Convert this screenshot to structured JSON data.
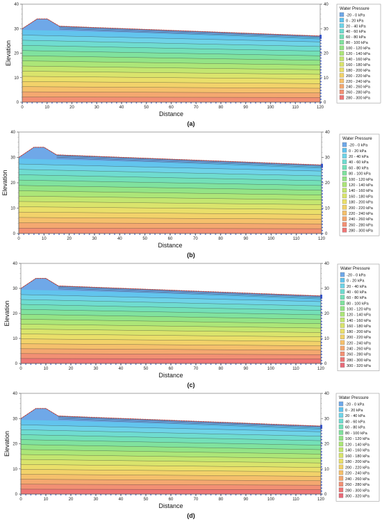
{
  "chart_data": [
    {
      "type": "heatmap",
      "caption": "(a)",
      "xlabel": "Distance",
      "ylabel": "Elevation",
      "xlim": [
        0,
        120
      ],
      "ylim": [
        0,
        40
      ],
      "x_ticks": [
        0,
        10,
        20,
        30,
        40,
        50,
        60,
        70,
        80,
        90,
        100,
        110,
        120
      ],
      "y_ticks": [
        0,
        10,
        20,
        30,
        40
      ],
      "legend_title": "Water Pressure",
      "legend_placement": "right",
      "ground_surface": [
        [
          0,
          30
        ],
        [
          6,
          34
        ],
        [
          10,
          34
        ],
        [
          15,
          31
        ],
        [
          120,
          27
        ]
      ],
      "legend": [
        {
          "label": "-20 - 0 kPa",
          "color": "#6fa8e8"
        },
        {
          "label": "0 - 20 kPa",
          "color": "#62c4ee"
        },
        {
          "label": "20 - 40 kPa",
          "color": "#6fd4e8"
        },
        {
          "label": "40 - 60 kPa",
          "color": "#6fdcd0"
        },
        {
          "label": "60 - 80 kPa",
          "color": "#74e0b8"
        },
        {
          "label": "80 - 100 kPa",
          "color": "#80e29e"
        },
        {
          "label": "100 - 120 kPa",
          "color": "#94e486"
        },
        {
          "label": "120 - 140 kPa",
          "color": "#ace678"
        },
        {
          "label": "140 - 160 kPa",
          "color": "#c4e670"
        },
        {
          "label": "160 - 180 kPa",
          "color": "#dae46c"
        },
        {
          "label": "180 - 200 kPa",
          "color": "#eadf6a"
        },
        {
          "label": "200 - 220 kPa",
          "color": "#f2d26a"
        },
        {
          "label": "220 - 240 kPa",
          "color": "#f5c06c"
        },
        {
          "label": "240 - 260 kPa",
          "color": "#f4a870"
        },
        {
          "label": "260 - 280 kPa",
          "color": "#f29074"
        },
        {
          "label": "280 - 300 kPa",
          "color": "#ee7676"
        }
      ]
    },
    {
      "type": "heatmap",
      "caption": "(b)",
      "xlabel": "Distance",
      "ylabel": "Elevation",
      "xlim": [
        0,
        120
      ],
      "ylim": [
        0,
        40
      ],
      "x_ticks": [
        0,
        10,
        20,
        30,
        40,
        50,
        60,
        70,
        80,
        90,
        100,
        110,
        120
      ],
      "y_ticks": [
        0,
        10,
        20,
        30,
        40
      ],
      "legend_title": "Water Pressure",
      "legend_placement": "right",
      "ground_surface": [
        [
          0,
          30
        ],
        [
          6,
          34
        ],
        [
          10,
          34
        ],
        [
          15,
          31
        ],
        [
          120,
          27
        ]
      ],
      "legend": [
        {
          "label": "-20 - 0 kPa",
          "color": "#6fa8e8"
        },
        {
          "label": "0 - 20 kPa",
          "color": "#62c4ee"
        },
        {
          "label": "20 - 40 kPa",
          "color": "#6fd4e8"
        },
        {
          "label": "40 - 60 kPa",
          "color": "#6fdcd0"
        },
        {
          "label": "60 - 80 kPa",
          "color": "#74e0b8"
        },
        {
          "label": "80 - 100 kPa",
          "color": "#80e29e"
        },
        {
          "label": "100 - 120 kPa",
          "color": "#94e486"
        },
        {
          "label": "120 - 140 kPa",
          "color": "#ace678"
        },
        {
          "label": "140 - 160 kPa",
          "color": "#c4e670"
        },
        {
          "label": "160 - 180 kPa",
          "color": "#dae46c"
        },
        {
          "label": "180 - 200 kPa",
          "color": "#eadf6a"
        },
        {
          "label": "200 - 220 kPa",
          "color": "#f2d26a"
        },
        {
          "label": "220 - 240 kPa",
          "color": "#f5c06c"
        },
        {
          "label": "240 - 260 kPa",
          "color": "#f4a870"
        },
        {
          "label": "260 - 280 kPa",
          "color": "#f29074"
        },
        {
          "label": "280 - 300 kPa",
          "color": "#ee7676"
        }
      ]
    },
    {
      "type": "heatmap",
      "caption": "(c)",
      "xlabel": "Distance",
      "ylabel": "Elevation",
      "xlim": [
        0,
        120
      ],
      "ylim": [
        0,
        40
      ],
      "x_ticks": [
        0,
        10,
        20,
        30,
        40,
        50,
        60,
        70,
        80,
        90,
        100,
        110,
        120
      ],
      "y_ticks": [
        0,
        10,
        20,
        30,
        40
      ],
      "legend_title": "Water Pressure",
      "legend_placement": "right",
      "ground_surface": [
        [
          0,
          30
        ],
        [
          6,
          34
        ],
        [
          10,
          34
        ],
        [
          15,
          31
        ],
        [
          120,
          27
        ]
      ],
      "legend": [
        {
          "label": "-20 - 0 kPa",
          "color": "#6fa8e8"
        },
        {
          "label": "0 - 20 kPa",
          "color": "#62c4ee"
        },
        {
          "label": "20 - 40 kPa",
          "color": "#6fd4e8"
        },
        {
          "label": "40 - 60 kPa",
          "color": "#6fdcd0"
        },
        {
          "label": "60 - 80 kPa",
          "color": "#74e0b8"
        },
        {
          "label": "80 - 100 kPa",
          "color": "#80e29e"
        },
        {
          "label": "100 - 120 kPa",
          "color": "#94e486"
        },
        {
          "label": "120 - 140 kPa",
          "color": "#ace678"
        },
        {
          "label": "140 - 160 kPa",
          "color": "#c4e670"
        },
        {
          "label": "160 - 180 kPa",
          "color": "#dae46c"
        },
        {
          "label": "180 - 200 kPa",
          "color": "#eadf6a"
        },
        {
          "label": "200 - 220 kPa",
          "color": "#f2d26a"
        },
        {
          "label": "220 - 240 kPa",
          "color": "#f5c06c"
        },
        {
          "label": "240 - 260 kPa",
          "color": "#f4a870"
        },
        {
          "label": "260 - 280 kPa",
          "color": "#f29074"
        },
        {
          "label": "280 - 300 kPa",
          "color": "#ee7676"
        },
        {
          "label": "300 - 320 kPa",
          "color": "#e86a78"
        }
      ]
    },
    {
      "type": "heatmap",
      "caption": "(d)",
      "xlabel": "Distance",
      "ylabel": "Elevation",
      "xlim": [
        0,
        120
      ],
      "ylim": [
        0,
        40
      ],
      "x_ticks": [
        0,
        10,
        20,
        30,
        40,
        50,
        60,
        70,
        80,
        90,
        100,
        110,
        120
      ],
      "y_ticks": [
        0,
        10,
        20,
        30,
        40
      ],
      "legend_title": "Water Pressure",
      "legend_placement": "right",
      "ground_surface": [
        [
          0,
          30
        ],
        [
          6,
          34
        ],
        [
          10,
          34
        ],
        [
          15,
          31
        ],
        [
          120,
          27
        ]
      ],
      "legend": [
        {
          "label": "-20 - 0 kPa",
          "color": "#6fa8e8"
        },
        {
          "label": "0 - 20 kPa",
          "color": "#62c4ee"
        },
        {
          "label": "20 - 40 kPa",
          "color": "#6fd4e8"
        },
        {
          "label": "40 - 60 kPa",
          "color": "#6fdcd0"
        },
        {
          "label": "60 - 80 kPa",
          "color": "#74e0b8"
        },
        {
          "label": "80 - 100 kPa",
          "color": "#80e29e"
        },
        {
          "label": "100 - 120 kPa",
          "color": "#94e486"
        },
        {
          "label": "120 - 140 kPa",
          "color": "#ace678"
        },
        {
          "label": "140 - 160 kPa",
          "color": "#c4e670"
        },
        {
          "label": "160 - 180 kPa",
          "color": "#dae46c"
        },
        {
          "label": "180 - 200 kPa",
          "color": "#eadf6a"
        },
        {
          "label": "200 - 220 kPa",
          "color": "#f2d26a"
        },
        {
          "label": "220 - 240 kPa",
          "color": "#f5c06c"
        },
        {
          "label": "240 - 260 kPa",
          "color": "#f4a870"
        },
        {
          "label": "260 - 280 kPa",
          "color": "#f29074"
        },
        {
          "label": "280 - 300 kPa",
          "color": "#ee7676"
        },
        {
          "label": "300 - 320 kPa",
          "color": "#e86a78"
        }
      ]
    }
  ]
}
